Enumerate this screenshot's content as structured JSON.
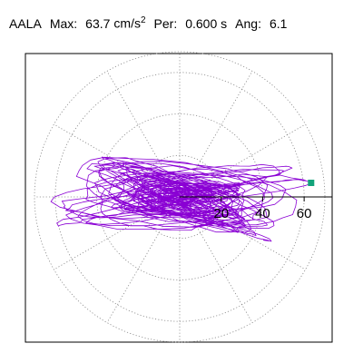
{
  "header": {
    "station": "AALA",
    "max_label": "Max:",
    "max_value": "63.7",
    "max_unit": "cm/s",
    "max_unit_exp": "2",
    "per_label": "Per:",
    "per_value": "0.600 s",
    "ang_label": "Ang:",
    "ang_value": "6.1"
  },
  "chart_data": {
    "type": "scatter",
    "subtype": "polar-orbit",
    "title": "",
    "rlim": [
      0,
      70
    ],
    "radial_ticks": [
      {
        "r": 20,
        "label": "20"
      },
      {
        "r": 40,
        "label": "40"
      },
      {
        "r": 60,
        "label": "60"
      }
    ],
    "angular_gridlines_deg": [
      0,
      30,
      60,
      90,
      120,
      150,
      180,
      210,
      240,
      270,
      300,
      330
    ],
    "grid": true,
    "max_point": {
      "r": 63.7,
      "theta_deg": 6.1
    },
    "series": [
      {
        "color": "#8a00d4"
      }
    ],
    "axis_color": "#000000",
    "grid_color": "#888888",
    "marker_color": "#12a37a"
  }
}
